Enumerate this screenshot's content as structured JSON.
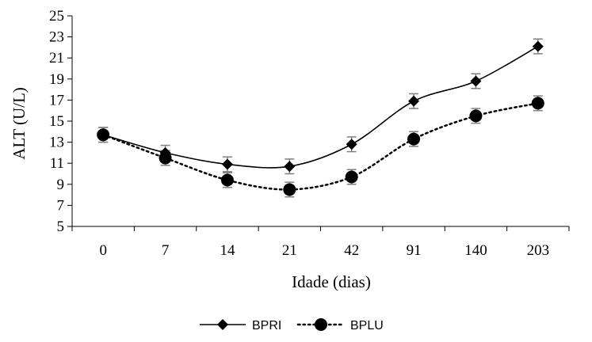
{
  "chart_data": {
    "type": "line",
    "title": "",
    "xlabel": "Idade (dias)",
    "ylabel": "ALT (U/L)",
    "categories": [
      "0",
      "7",
      "14",
      "21",
      "42",
      "91",
      "140",
      "203"
    ],
    "ylim": [
      5,
      25
    ],
    "yticks": [
      5,
      7,
      9,
      11,
      13,
      15,
      17,
      19,
      21,
      23,
      25
    ],
    "grid": false,
    "legend_position": "bottom",
    "series": [
      {
        "name": "BPRI",
        "values": [
          13.7,
          12.0,
          10.9,
          10.7,
          12.8,
          16.9,
          18.8,
          22.1
        ],
        "error": [
          0.7,
          0.7,
          0.7,
          0.7,
          0.7,
          0.7,
          0.7,
          0.7
        ],
        "line_style": "solid",
        "marker": "diamond",
        "color": "#000000"
      },
      {
        "name": "BPLU",
        "values": [
          13.7,
          11.5,
          9.4,
          8.5,
          9.7,
          13.3,
          15.5,
          16.7
        ],
        "error": [
          0.7,
          0.7,
          0.7,
          0.7,
          0.7,
          0.7,
          0.7,
          0.7
        ],
        "line_style": "dotted",
        "marker": "circle",
        "color": "#000000"
      }
    ],
    "error_bar_color": "#808080"
  }
}
